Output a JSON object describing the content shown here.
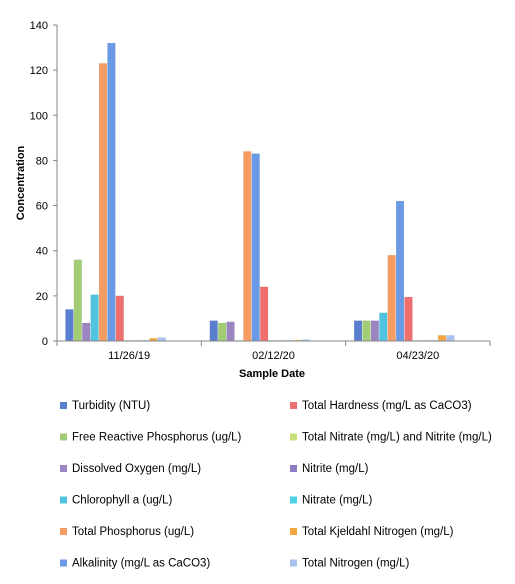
{
  "chart_data": {
    "type": "bar",
    "xlabel": "Sample Date",
    "ylabel": "Concentration",
    "ylim": [
      0,
      140
    ],
    "yticks": [
      0,
      20,
      40,
      60,
      80,
      100,
      120,
      140
    ],
    "grid": false,
    "legend_position": "bottom",
    "categories": [
      "11/26/19",
      "02/12/20",
      "04/23/20"
    ],
    "series": [
      {
        "name": "Turbidity (NTU)",
        "color": "#5b7fcf",
        "values": [
          14,
          9,
          9
        ]
      },
      {
        "name": "Free Reactive Phosphorus (ug/L)",
        "color": "#a3cd74",
        "values": [
          36,
          8,
          9
        ]
      },
      {
        "name": "Dissolved Oxygen (mg/L)",
        "color": "#9b86c2",
        "values": [
          8,
          8.5,
          9
        ]
      },
      {
        "name": "Chlorophyll a (ug/L)",
        "color": "#4fc3df",
        "values": [
          20.5,
          0,
          12.5
        ]
      },
      {
        "name": "Total Phosphorus (ug/L)",
        "color": "#f59c63",
        "values": [
          123,
          84,
          38
        ]
      },
      {
        "name": "Alkalinity (mg/L as CaCO3)",
        "color": "#6a9ae6",
        "values": [
          132,
          83,
          62
        ]
      },
      {
        "name": "Total Hardness (mg/L as CaCO3)",
        "color": "#ef6f6f",
        "values": [
          20,
          24,
          19.5
        ]
      },
      {
        "name": "Total Nitrate (mg/L) and Nitrite (mg/L)",
        "color": "#c6e07a",
        "values": [
          0.3,
          0.3,
          0.3
        ]
      },
      {
        "name": "Nitrite (mg/L)",
        "color": "#8e7cc3",
        "values": [
          0.2,
          0.2,
          0.2
        ]
      },
      {
        "name": "Nitrate (mg/L)",
        "color": "#4dd0e8",
        "values": [
          0.3,
          0.3,
          0.3
        ]
      },
      {
        "name": "Total Kjeldahl Nitrogen (mg/L)",
        "color": "#f4a53f",
        "values": [
          1.2,
          0.4,
          2.5
        ]
      },
      {
        "name": "Total Nitrogen (mg/L)",
        "color": "#a8c4ee",
        "values": [
          1.5,
          0.6,
          2.5
        ]
      }
    ]
  }
}
